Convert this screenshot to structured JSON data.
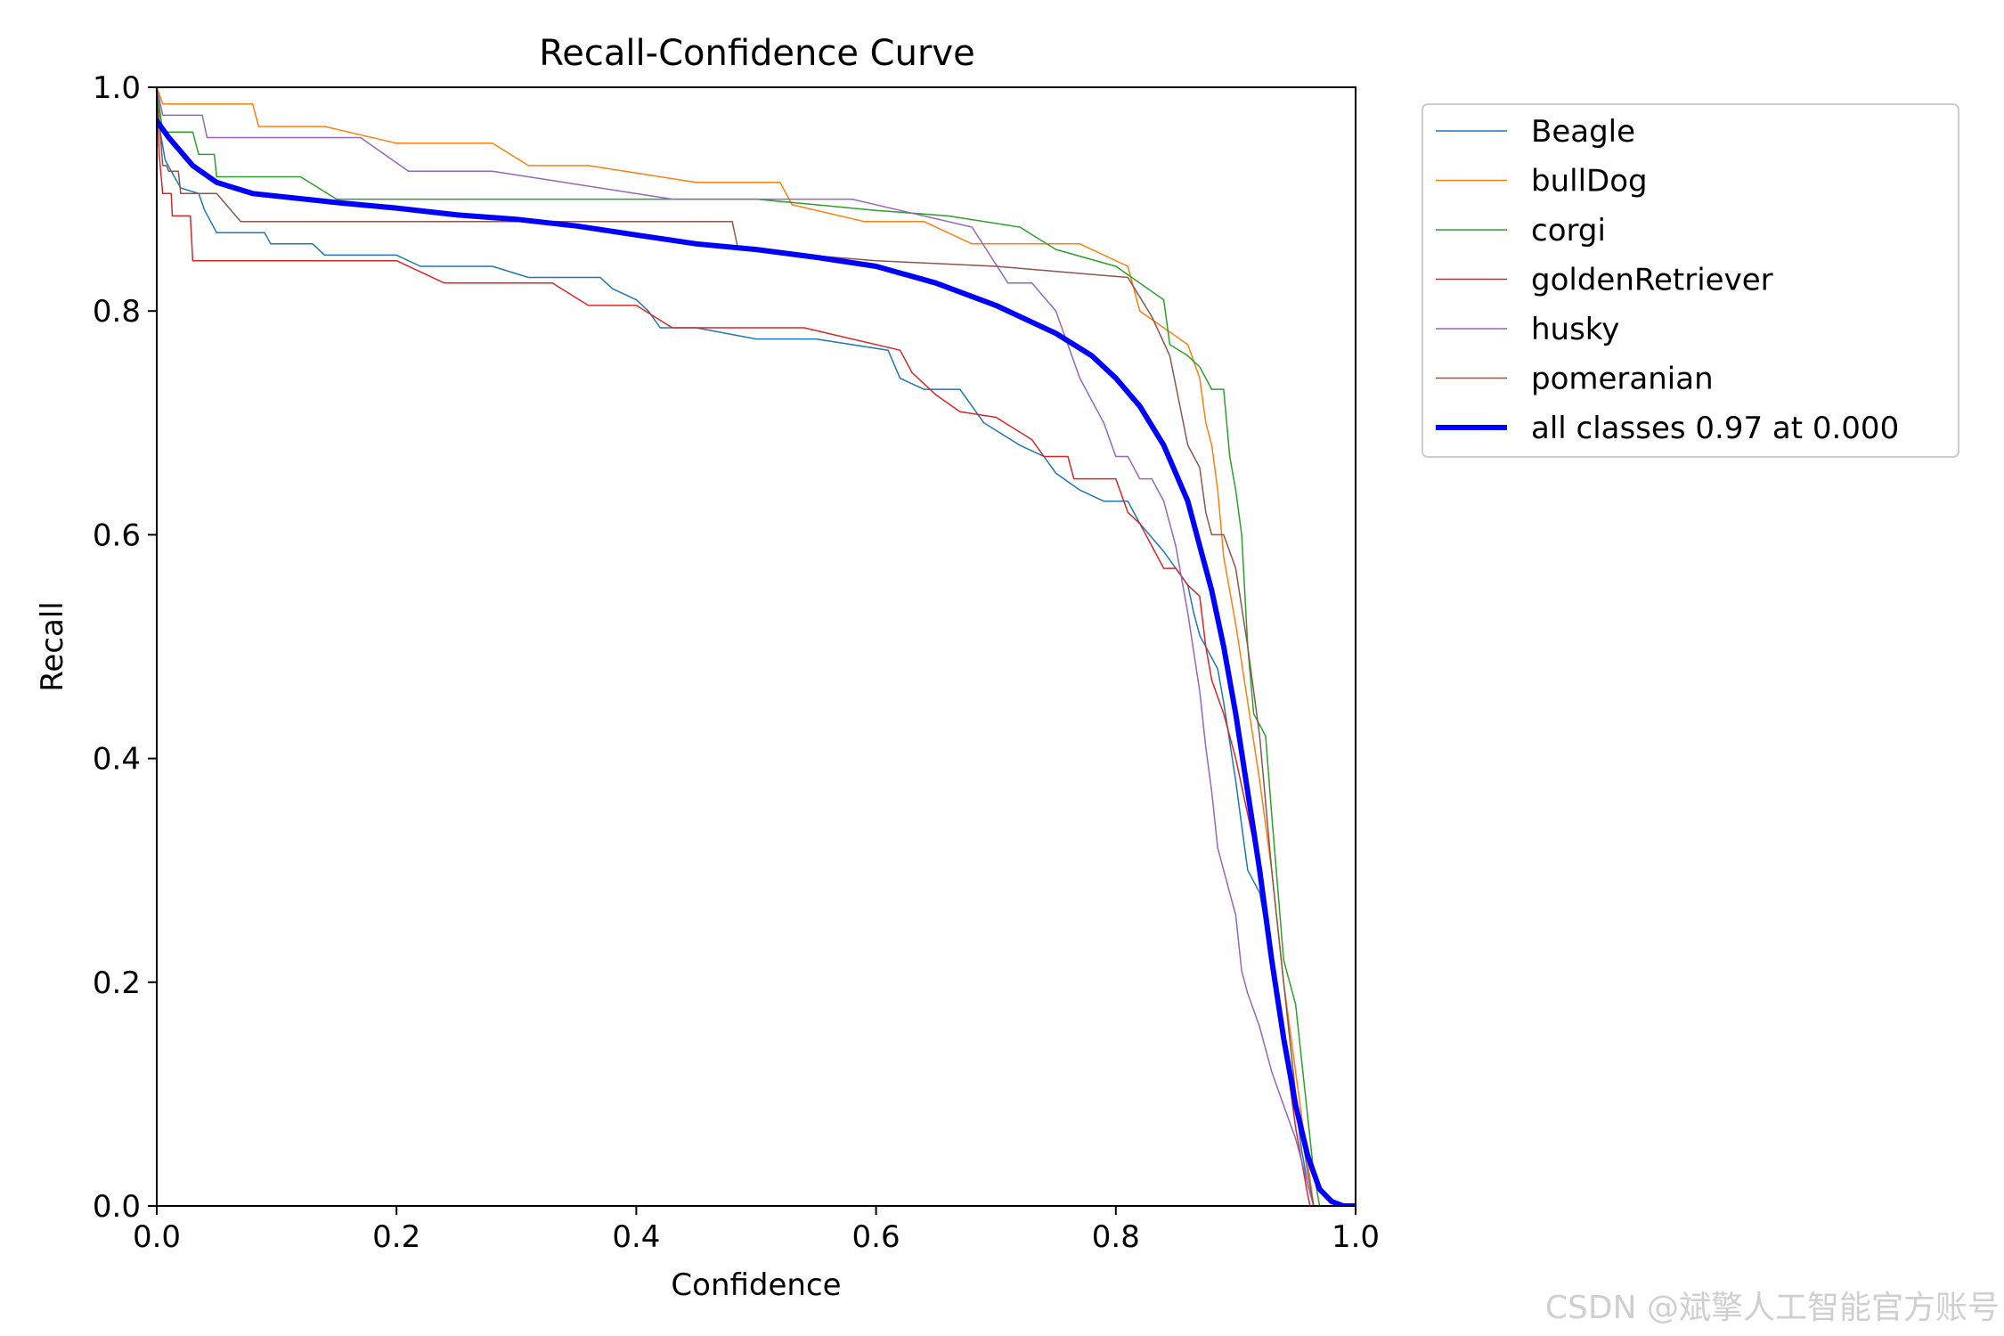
{
  "chart_data": {
    "type": "line",
    "title": "Recall-Confidence Curve",
    "xlabel": "Confidence",
    "ylabel": "Recall",
    "xlim": [
      0,
      1
    ],
    "ylim": [
      0,
      1
    ],
    "xticks": [
      "0.0",
      "0.2",
      "0.4",
      "0.6",
      "0.8",
      "1.0"
    ],
    "yticks": [
      "0.0",
      "0.2",
      "0.4",
      "0.6",
      "0.8",
      "1.0"
    ],
    "legend_position": "outside-top-right",
    "watermark": "CSDN @斌擎人工智能官方账号",
    "series": [
      {
        "name": "Beagle",
        "color": "#1f77b4",
        "width": 1.5,
        "points": [
          [
            0,
            1
          ],
          [
            0.003,
            0.96
          ],
          [
            0.007,
            0.935
          ],
          [
            0.012,
            0.925
          ],
          [
            0.02,
            0.91
          ],
          [
            0.035,
            0.905
          ],
          [
            0.04,
            0.89
          ],
          [
            0.05,
            0.87
          ],
          [
            0.09,
            0.87
          ],
          [
            0.095,
            0.86
          ],
          [
            0.13,
            0.86
          ],
          [
            0.14,
            0.85
          ],
          [
            0.2,
            0.85
          ],
          [
            0.22,
            0.84
          ],
          [
            0.28,
            0.84
          ],
          [
            0.31,
            0.83
          ],
          [
            0.37,
            0.83
          ],
          [
            0.38,
            0.82
          ],
          [
            0.4,
            0.81
          ],
          [
            0.41,
            0.8
          ],
          [
            0.42,
            0.785
          ],
          [
            0.45,
            0.785
          ],
          [
            0.5,
            0.775
          ],
          [
            0.55,
            0.775
          ],
          [
            0.61,
            0.765
          ],
          [
            0.62,
            0.74
          ],
          [
            0.64,
            0.73
          ],
          [
            0.67,
            0.73
          ],
          [
            0.69,
            0.7
          ],
          [
            0.72,
            0.68
          ],
          [
            0.74,
            0.67
          ],
          [
            0.75,
            0.655
          ],
          [
            0.77,
            0.64
          ],
          [
            0.79,
            0.63
          ],
          [
            0.81,
            0.63
          ],
          [
            0.82,
            0.61
          ],
          [
            0.84,
            0.585
          ],
          [
            0.85,
            0.57
          ],
          [
            0.86,
            0.555
          ],
          [
            0.865,
            0.53
          ],
          [
            0.87,
            0.51
          ],
          [
            0.88,
            0.49
          ],
          [
            0.885,
            0.48
          ],
          [
            0.89,
            0.45
          ],
          [
            0.9,
            0.38
          ],
          [
            0.905,
            0.34
          ],
          [
            0.91,
            0.3
          ],
          [
            0.92,
            0.28
          ],
          [
            0.93,
            0.22
          ],
          [
            0.94,
            0.15
          ],
          [
            0.95,
            0.09
          ],
          [
            0.955,
            0.05
          ],
          [
            0.96,
            0.02
          ],
          [
            0.965,
            0
          ]
        ]
      },
      {
        "name": "bullDog",
        "color": "#ff7f0e",
        "width": 1.5,
        "points": [
          [
            0,
            1
          ],
          [
            0.005,
            0.985
          ],
          [
            0.08,
            0.985
          ],
          [
            0.085,
            0.965
          ],
          [
            0.14,
            0.965
          ],
          [
            0.2,
            0.95
          ],
          [
            0.28,
            0.95
          ],
          [
            0.31,
            0.93
          ],
          [
            0.36,
            0.93
          ],
          [
            0.45,
            0.915
          ],
          [
            0.52,
            0.915
          ],
          [
            0.53,
            0.895
          ],
          [
            0.59,
            0.88
          ],
          [
            0.64,
            0.88
          ],
          [
            0.68,
            0.86
          ],
          [
            0.77,
            0.86
          ],
          [
            0.81,
            0.84
          ],
          [
            0.82,
            0.8
          ],
          [
            0.86,
            0.77
          ],
          [
            0.87,
            0.74
          ],
          [
            0.875,
            0.7
          ],
          [
            0.88,
            0.68
          ],
          [
            0.885,
            0.64
          ],
          [
            0.89,
            0.58
          ],
          [
            0.9,
            0.52
          ],
          [
            0.91,
            0.45
          ],
          [
            0.92,
            0.38
          ],
          [
            0.93,
            0.3
          ],
          [
            0.94,
            0.2
          ],
          [
            0.95,
            0.12
          ],
          [
            0.96,
            0.04
          ],
          [
            0.965,
            0
          ]
        ]
      },
      {
        "name": "corgi",
        "color": "#2ca02c",
        "width": 1.5,
        "points": [
          [
            0,
            1
          ],
          [
            0.005,
            0.96
          ],
          [
            0.03,
            0.96
          ],
          [
            0.035,
            0.94
          ],
          [
            0.048,
            0.94
          ],
          [
            0.05,
            0.92
          ],
          [
            0.12,
            0.92
          ],
          [
            0.15,
            0.9
          ],
          [
            0.2,
            0.9
          ],
          [
            0.5,
            0.9
          ],
          [
            0.55,
            0.895
          ],
          [
            0.6,
            0.89
          ],
          [
            0.66,
            0.885
          ],
          [
            0.72,
            0.875
          ],
          [
            0.75,
            0.855
          ],
          [
            0.8,
            0.84
          ],
          [
            0.84,
            0.81
          ],
          [
            0.845,
            0.77
          ],
          [
            0.86,
            0.76
          ],
          [
            0.87,
            0.75
          ],
          [
            0.88,
            0.73
          ],
          [
            0.89,
            0.73
          ],
          [
            0.895,
            0.67
          ],
          [
            0.9,
            0.64
          ],
          [
            0.905,
            0.6
          ],
          [
            0.91,
            0.5
          ],
          [
            0.915,
            0.44
          ],
          [
            0.92,
            0.43
          ],
          [
            0.925,
            0.42
          ],
          [
            0.93,
            0.35
          ],
          [
            0.94,
            0.22
          ],
          [
            0.95,
            0.18
          ],
          [
            0.955,
            0.13
          ],
          [
            0.96,
            0.08
          ],
          [
            0.965,
            0.03
          ],
          [
            0.97,
            0
          ]
        ]
      },
      {
        "name": "goldenRetriever",
        "color": "#d62728",
        "width": 1.5,
        "points": [
          [
            0,
            1
          ],
          [
            0.002,
            0.94
          ],
          [
            0.005,
            0.905
          ],
          [
            0.012,
            0.905
          ],
          [
            0.013,
            0.885
          ],
          [
            0.028,
            0.885
          ],
          [
            0.03,
            0.845
          ],
          [
            0.2,
            0.845
          ],
          [
            0.24,
            0.825
          ],
          [
            0.33,
            0.825
          ],
          [
            0.36,
            0.805
          ],
          [
            0.4,
            0.805
          ],
          [
            0.43,
            0.785
          ],
          [
            0.54,
            0.785
          ],
          [
            0.62,
            0.765
          ],
          [
            0.63,
            0.745
          ],
          [
            0.65,
            0.725
          ],
          [
            0.67,
            0.71
          ],
          [
            0.7,
            0.705
          ],
          [
            0.73,
            0.685
          ],
          [
            0.74,
            0.67
          ],
          [
            0.76,
            0.67
          ],
          [
            0.765,
            0.65
          ],
          [
            0.8,
            0.65
          ],
          [
            0.81,
            0.62
          ],
          [
            0.82,
            0.61
          ],
          [
            0.83,
            0.59
          ],
          [
            0.84,
            0.57
          ],
          [
            0.85,
            0.57
          ],
          [
            0.86,
            0.555
          ],
          [
            0.87,
            0.545
          ],
          [
            0.875,
            0.5
          ],
          [
            0.88,
            0.47
          ],
          [
            0.89,
            0.44
          ],
          [
            0.9,
            0.4
          ],
          [
            0.91,
            0.35
          ],
          [
            0.92,
            0.3
          ],
          [
            0.93,
            0.23
          ],
          [
            0.94,
            0.15
          ],
          [
            0.95,
            0.07
          ],
          [
            0.96,
            0.01
          ],
          [
            0.962,
            0
          ]
        ]
      },
      {
        "name": "husky",
        "color": "#9467bd",
        "width": 1.5,
        "points": [
          [
            0,
            1
          ],
          [
            0.005,
            0.975
          ],
          [
            0.038,
            0.975
          ],
          [
            0.042,
            0.955
          ],
          [
            0.17,
            0.955
          ],
          [
            0.21,
            0.925
          ],
          [
            0.28,
            0.925
          ],
          [
            0.43,
            0.9
          ],
          [
            0.58,
            0.9
          ],
          [
            0.62,
            0.89
          ],
          [
            0.68,
            0.875
          ],
          [
            0.71,
            0.825
          ],
          [
            0.73,
            0.825
          ],
          [
            0.75,
            0.8
          ],
          [
            0.77,
            0.74
          ],
          [
            0.79,
            0.7
          ],
          [
            0.8,
            0.67
          ],
          [
            0.81,
            0.67
          ],
          [
            0.82,
            0.65
          ],
          [
            0.83,
            0.65
          ],
          [
            0.84,
            0.63
          ],
          [
            0.85,
            0.59
          ],
          [
            0.86,
            0.53
          ],
          [
            0.87,
            0.46
          ],
          [
            0.875,
            0.41
          ],
          [
            0.88,
            0.37
          ],
          [
            0.885,
            0.32
          ],
          [
            0.89,
            0.3
          ],
          [
            0.9,
            0.26
          ],
          [
            0.905,
            0.21
          ],
          [
            0.91,
            0.19
          ],
          [
            0.92,
            0.16
          ],
          [
            0.93,
            0.12
          ],
          [
            0.94,
            0.09
          ],
          [
            0.95,
            0.06
          ],
          [
            0.96,
            0.02
          ],
          [
            0.965,
            0
          ]
        ]
      },
      {
        "name": "pomeranian",
        "color": "#8c564b",
        "width": 1.5,
        "points": [
          [
            0,
            1
          ],
          [
            0.005,
            0.93
          ],
          [
            0.008,
            0.93
          ],
          [
            0.01,
            0.925
          ],
          [
            0.018,
            0.925
          ],
          [
            0.02,
            0.905
          ],
          [
            0.05,
            0.905
          ],
          [
            0.07,
            0.88
          ],
          [
            0.48,
            0.88
          ],
          [
            0.485,
            0.855
          ],
          [
            0.6,
            0.845
          ],
          [
            0.7,
            0.84
          ],
          [
            0.81,
            0.83
          ],
          [
            0.83,
            0.795
          ],
          [
            0.845,
            0.76
          ],
          [
            0.86,
            0.68
          ],
          [
            0.87,
            0.66
          ],
          [
            0.875,
            0.62
          ],
          [
            0.88,
            0.6
          ],
          [
            0.89,
            0.6
          ],
          [
            0.9,
            0.57
          ],
          [
            0.91,
            0.5
          ],
          [
            0.92,
            0.42
          ],
          [
            0.93,
            0.3
          ],
          [
            0.94,
            0.2
          ],
          [
            0.95,
            0.1
          ],
          [
            0.96,
            0.03
          ],
          [
            0.965,
            0
          ]
        ]
      },
      {
        "name": "all classes 0.97 at 0.000",
        "color": "#0000ff",
        "width": 6,
        "points": [
          [
            0,
            0.97
          ],
          [
            0.01,
            0.955
          ],
          [
            0.03,
            0.93
          ],
          [
            0.05,
            0.915
          ],
          [
            0.08,
            0.905
          ],
          [
            0.15,
            0.897
          ],
          [
            0.2,
            0.892
          ],
          [
            0.25,
            0.886
          ],
          [
            0.3,
            0.882
          ],
          [
            0.35,
            0.876
          ],
          [
            0.4,
            0.868
          ],
          [
            0.45,
            0.86
          ],
          [
            0.5,
            0.855
          ],
          [
            0.55,
            0.848
          ],
          [
            0.6,
            0.84
          ],
          [
            0.65,
            0.825
          ],
          [
            0.7,
            0.805
          ],
          [
            0.75,
            0.78
          ],
          [
            0.78,
            0.76
          ],
          [
            0.8,
            0.74
          ],
          [
            0.82,
            0.715
          ],
          [
            0.84,
            0.68
          ],
          [
            0.86,
            0.63
          ],
          [
            0.87,
            0.59
          ],
          [
            0.88,
            0.55
          ],
          [
            0.89,
            0.5
          ],
          [
            0.9,
            0.44
          ],
          [
            0.91,
            0.37
          ],
          [
            0.92,
            0.3
          ],
          [
            0.93,
            0.22
          ],
          [
            0.94,
            0.15
          ],
          [
            0.95,
            0.09
          ],
          [
            0.96,
            0.045
          ],
          [
            0.97,
            0.015
          ],
          [
            0.98,
            0.004
          ],
          [
            0.99,
            0
          ],
          [
            1,
            0
          ]
        ]
      }
    ]
  }
}
